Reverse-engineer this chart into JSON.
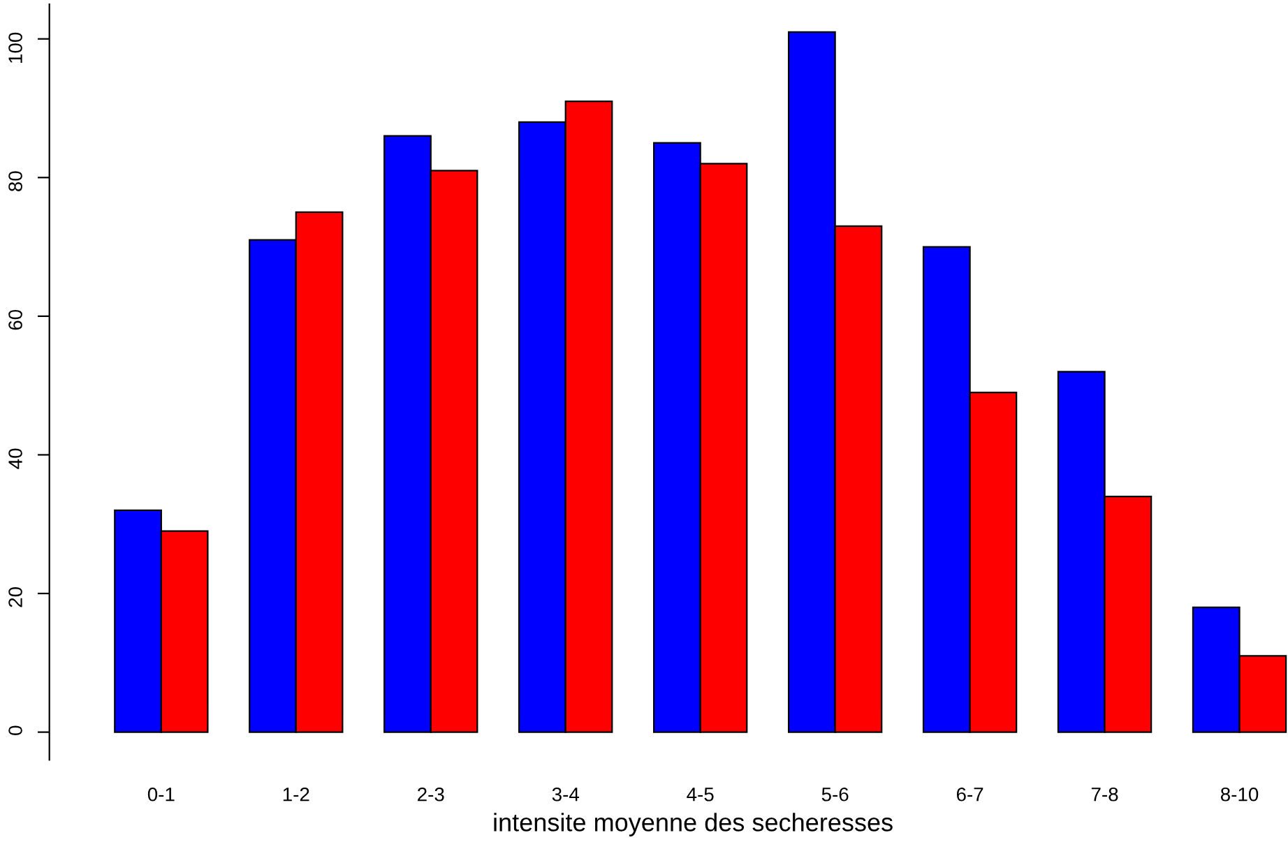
{
  "chart_data": {
    "type": "bar",
    "xlabel": "intensite moyenne des secheresses",
    "categories": [
      "0-1",
      "1-2",
      "2-3",
      "3-4",
      "4-5",
      "5-6",
      "6-7",
      "7-8",
      "8-10"
    ],
    "series": [
      {
        "color": "#0000ff",
        "values": [
          32,
          71,
          86,
          88,
          85,
          101,
          70,
          52,
          18
        ]
      },
      {
        "color": "#ff0000",
        "values": [
          29,
          75,
          81,
          91,
          82,
          73,
          49,
          34,
          11
        ]
      }
    ],
    "ylim": [
      -4,
      105
    ],
    "yticks": [
      0,
      20,
      40,
      60,
      80,
      100
    ],
    "grid": false,
    "legend": false
  }
}
